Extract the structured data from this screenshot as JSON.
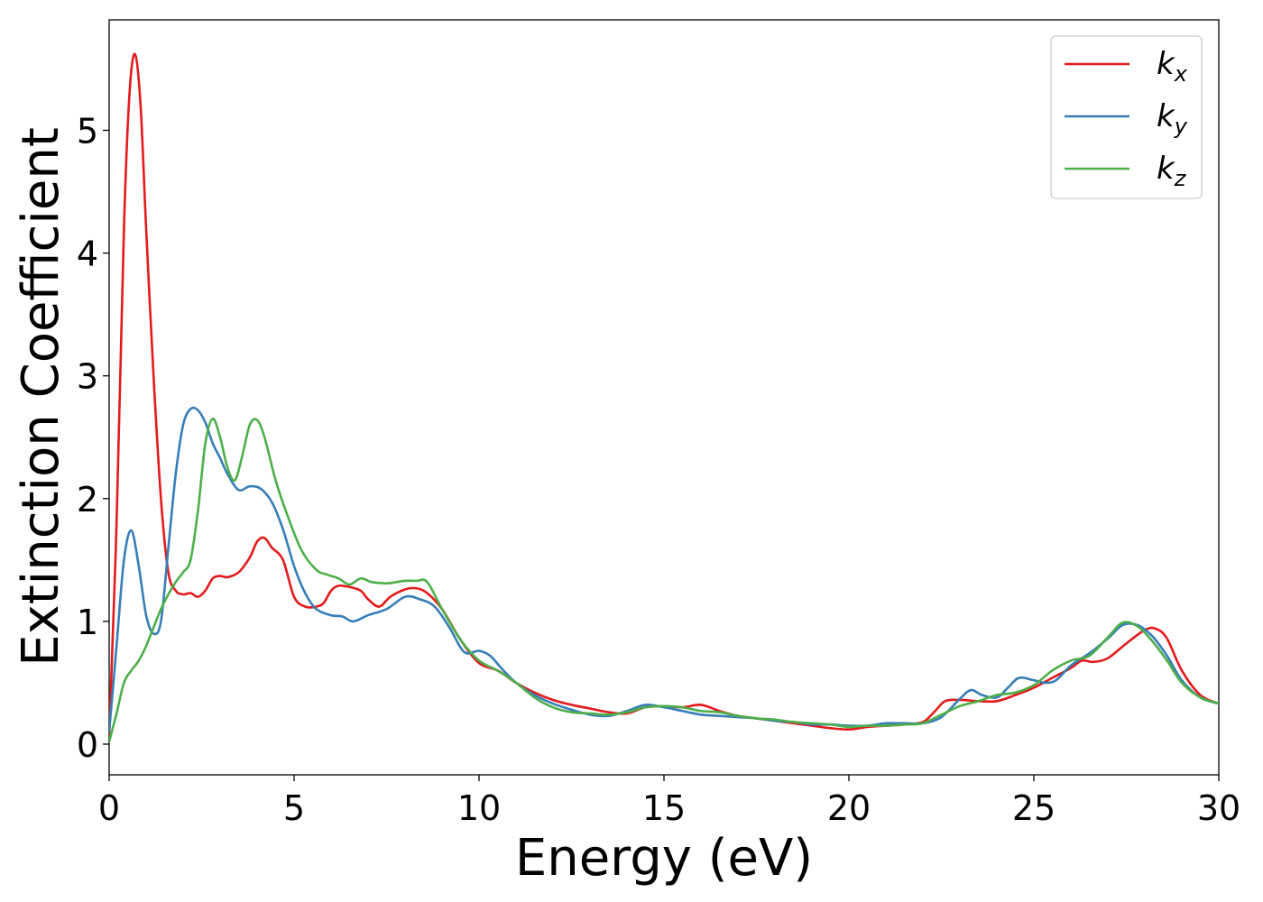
{
  "chart_data": {
    "type": "line",
    "title": "",
    "xlabel": "Energy (eV)",
    "ylabel": "Extinction Coefficient",
    "xlim": [
      0,
      30
    ],
    "ylim": [
      -0.25,
      5.9
    ],
    "xticks": [
      0,
      5,
      10,
      15,
      20,
      25,
      30
    ],
    "yticks": [
      0,
      1,
      2,
      3,
      4,
      5
    ],
    "grid": false,
    "legend_position": "top-right",
    "series": [
      {
        "name": "k_x",
        "label_main": "k",
        "label_sub": "x",
        "color": "#e41a1c",
        "x": [
          0,
          0.2,
          0.4,
          0.55,
          0.7,
          0.85,
          1.0,
          1.2,
          1.4,
          1.6,
          1.8,
          2.0,
          2.2,
          2.4,
          2.6,
          2.8,
          3.0,
          3.2,
          3.5,
          3.8,
          4.0,
          4.2,
          4.4,
          4.7,
          5.0,
          5.3,
          5.6,
          5.8,
          6.0,
          6.2,
          6.5,
          6.8,
          7.0,
          7.3,
          7.6,
          8.0,
          8.3,
          8.6,
          9.0,
          9.5,
          10.0,
          10.5,
          11.0,
          11.5,
          12.0,
          12.5,
          13.0,
          13.5,
          14.0,
          14.5,
          15.0,
          15.5,
          16.0,
          16.5,
          17.0,
          17.5,
          18.0,
          18.5,
          19.0,
          19.5,
          20.0,
          20.5,
          21.0,
          21.5,
          22.0,
          22.3,
          22.6,
          23.0,
          23.5,
          24.0,
          24.5,
          25.0,
          25.5,
          26.0,
          26.3,
          26.6,
          27.0,
          27.5,
          28.0,
          28.3,
          28.6,
          29.0,
          29.5,
          30.0
        ],
        "y": [
          0.05,
          1.8,
          4.2,
          5.3,
          5.62,
          5.2,
          4.2,
          3.0,
          2.0,
          1.4,
          1.25,
          1.22,
          1.23,
          1.2,
          1.25,
          1.35,
          1.37,
          1.36,
          1.4,
          1.52,
          1.65,
          1.68,
          1.6,
          1.5,
          1.2,
          1.12,
          1.12,
          1.15,
          1.25,
          1.29,
          1.28,
          1.25,
          1.18,
          1.12,
          1.2,
          1.26,
          1.27,
          1.23,
          1.1,
          0.85,
          0.66,
          0.6,
          0.5,
          0.42,
          0.36,
          0.32,
          0.29,
          0.26,
          0.25,
          0.3,
          0.31,
          0.3,
          0.32,
          0.27,
          0.23,
          0.21,
          0.19,
          0.17,
          0.15,
          0.13,
          0.12,
          0.14,
          0.15,
          0.16,
          0.18,
          0.26,
          0.35,
          0.36,
          0.35,
          0.35,
          0.4,
          0.46,
          0.54,
          0.62,
          0.68,
          0.67,
          0.7,
          0.82,
          0.93,
          0.94,
          0.86,
          0.6,
          0.4,
          0.33
        ]
      },
      {
        "name": "k_y",
        "label_main": "k",
        "label_sub": "y",
        "color": "#377eb8",
        "x": [
          0,
          0.2,
          0.4,
          0.6,
          0.8,
          1.0,
          1.2,
          1.4,
          1.6,
          1.8,
          2.0,
          2.2,
          2.4,
          2.6,
          2.8,
          3.0,
          3.2,
          3.5,
          3.8,
          4.1,
          4.4,
          4.7,
          5.0,
          5.3,
          5.6,
          6.0,
          6.3,
          6.6,
          7.0,
          7.5,
          8.0,
          8.4,
          8.8,
          9.2,
          9.6,
          10.0,
          10.3,
          10.6,
          11.0,
          11.5,
          12.0,
          12.5,
          13.0,
          13.5,
          14.0,
          14.5,
          15.0,
          15.5,
          16.0,
          16.5,
          17.0,
          17.5,
          18.0,
          18.5,
          19.0,
          19.5,
          20.0,
          20.5,
          21.0,
          21.5,
          22.0,
          22.5,
          23.0,
          23.3,
          23.6,
          24.0,
          24.3,
          24.6,
          25.0,
          25.3,
          25.6,
          26.0,
          26.5,
          27.0,
          27.4,
          27.8,
          28.2,
          28.6,
          29.0,
          29.5,
          30.0
        ],
        "y": [
          0.1,
          0.8,
          1.5,
          1.74,
          1.45,
          1.05,
          0.9,
          1.0,
          1.6,
          2.2,
          2.6,
          2.73,
          2.72,
          2.62,
          2.45,
          2.33,
          2.2,
          2.07,
          2.1,
          2.08,
          1.97,
          1.75,
          1.45,
          1.23,
          1.1,
          1.05,
          1.04,
          1.0,
          1.05,
          1.1,
          1.2,
          1.18,
          1.12,
          0.95,
          0.75,
          0.76,
          0.72,
          0.62,
          0.5,
          0.4,
          0.33,
          0.28,
          0.24,
          0.23,
          0.27,
          0.32,
          0.3,
          0.27,
          0.24,
          0.23,
          0.22,
          0.21,
          0.19,
          0.18,
          0.16,
          0.16,
          0.15,
          0.15,
          0.17,
          0.17,
          0.17,
          0.22,
          0.37,
          0.44,
          0.4,
          0.38,
          0.46,
          0.54,
          0.52,
          0.5,
          0.52,
          0.64,
          0.74,
          0.86,
          0.97,
          0.97,
          0.88,
          0.72,
          0.52,
          0.38,
          0.33
        ]
      },
      {
        "name": "k_z",
        "label_main": "k",
        "label_sub": "z",
        "color": "#4daf4a",
        "x": [
          0,
          0.2,
          0.4,
          0.6,
          0.8,
          1.0,
          1.2,
          1.4,
          1.6,
          1.8,
          2.0,
          2.2,
          2.4,
          2.6,
          2.8,
          3.0,
          3.2,
          3.4,
          3.6,
          3.8,
          4.0,
          4.2,
          4.5,
          4.8,
          5.2,
          5.6,
          5.9,
          6.2,
          6.5,
          6.8,
          7.1,
          7.5,
          8.0,
          8.3,
          8.6,
          9.0,
          9.5,
          10.0,
          10.5,
          11.0,
          11.5,
          12.0,
          12.5,
          13.0,
          13.5,
          14.0,
          14.5,
          15.0,
          15.5,
          16.0,
          16.5,
          17.0,
          17.5,
          18.0,
          18.5,
          19.0,
          19.5,
          20.0,
          20.5,
          21.0,
          21.5,
          22.0,
          22.5,
          23.0,
          23.5,
          24.0,
          24.5,
          25.0,
          25.5,
          26.0,
          26.5,
          27.0,
          27.4,
          27.8,
          28.2,
          28.6,
          29.0,
          29.5,
          30.0
        ],
        "y": [
          0.02,
          0.25,
          0.5,
          0.6,
          0.68,
          0.8,
          0.95,
          1.1,
          1.22,
          1.32,
          1.4,
          1.5,
          1.9,
          2.45,
          2.65,
          2.5,
          2.25,
          2.15,
          2.35,
          2.6,
          2.64,
          2.5,
          2.15,
          1.88,
          1.58,
          1.42,
          1.38,
          1.35,
          1.3,
          1.35,
          1.32,
          1.31,
          1.33,
          1.33,
          1.32,
          1.1,
          0.85,
          0.68,
          0.6,
          0.5,
          0.38,
          0.3,
          0.26,
          0.25,
          0.24,
          0.26,
          0.3,
          0.31,
          0.3,
          0.27,
          0.26,
          0.23,
          0.21,
          0.2,
          0.18,
          0.17,
          0.16,
          0.14,
          0.15,
          0.15,
          0.16,
          0.17,
          0.24,
          0.31,
          0.35,
          0.4,
          0.42,
          0.48,
          0.6,
          0.68,
          0.72,
          0.87,
          0.99,
          0.96,
          0.84,
          0.68,
          0.5,
          0.38,
          0.33
        ]
      }
    ]
  }
}
